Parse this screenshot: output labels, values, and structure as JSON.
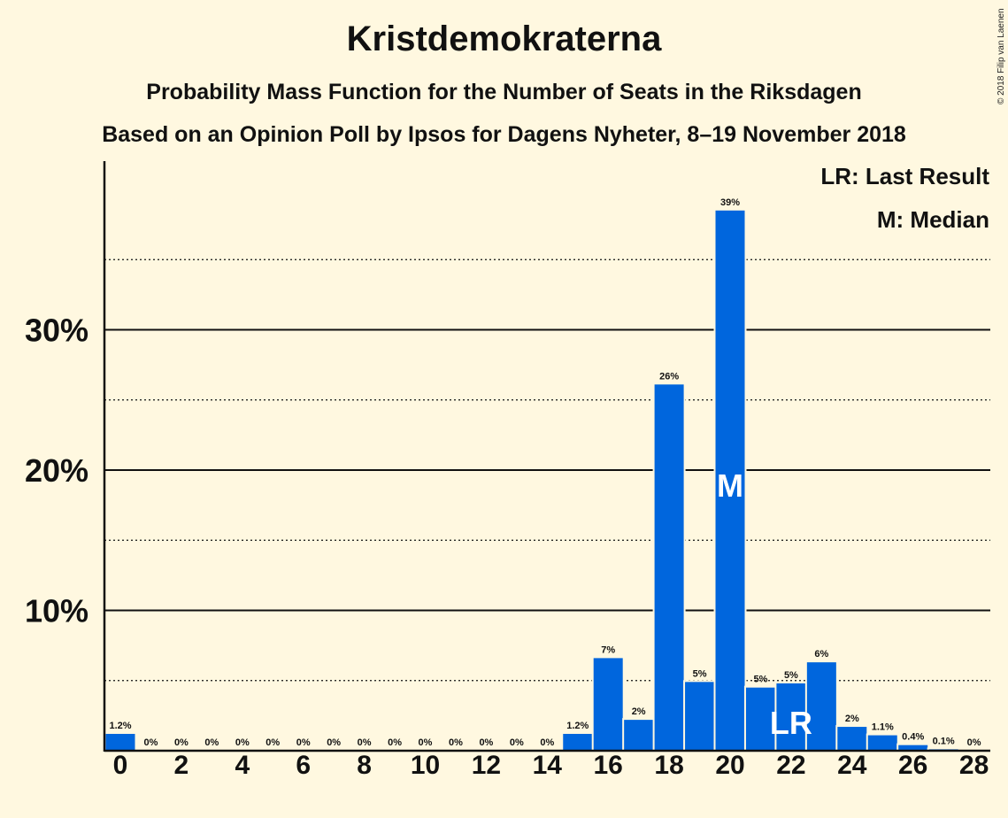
{
  "title": "Kristdemokraterna",
  "subtitle_1": "Probability Mass Function for the Number of Seats in the Riksdagen",
  "subtitle_2": "Based on an Opinion Poll by Ipsos for Dagens Nyheter, 8–19 November 2018",
  "copyright": "© 2018 Filip van Laenen",
  "legend": {
    "last_result": "LR: Last Result",
    "median": "M: Median"
  },
  "colors": {
    "background": "#fff8e0",
    "bar": "#0066dd",
    "marker_text": "#ffffff"
  },
  "chart_data": {
    "type": "bar",
    "categories": [
      0,
      1,
      2,
      3,
      4,
      5,
      6,
      7,
      8,
      9,
      10,
      11,
      12,
      13,
      14,
      15,
      16,
      17,
      18,
      19,
      20,
      21,
      22,
      23,
      24,
      25,
      26,
      27,
      28
    ],
    "values": [
      1.2,
      0,
      0,
      0,
      0,
      0,
      0,
      0,
      0,
      0,
      0,
      0,
      0,
      0,
      0,
      1.2,
      6.6,
      2.2,
      26.1,
      4.9,
      38.5,
      4.5,
      4.8,
      6.3,
      1.7,
      1.1,
      0.4,
      0.1,
      0
    ],
    "data_labels": [
      "1.2%",
      "0%",
      "0%",
      "0%",
      "0%",
      "0%",
      "0%",
      "0%",
      "0%",
      "0%",
      "0%",
      "0%",
      "0%",
      "0%",
      "0%",
      "1.2%",
      "7%",
      "2%",
      "26%",
      "5%",
      "39%",
      "5%",
      "5%",
      "6%",
      "2%",
      "1.1%",
      "0.4%",
      "0.1%",
      "0%"
    ],
    "x_tick_labels": [
      "0",
      "2",
      "4",
      "6",
      "8",
      "10",
      "12",
      "14",
      "16",
      "18",
      "20",
      "22",
      "24",
      "26",
      "28"
    ],
    "y_tick_labels": [
      "10%",
      "20%",
      "30%"
    ],
    "y_ticks": [
      10,
      20,
      30
    ],
    "y_minor_ticks": [
      5,
      15,
      25,
      35
    ],
    "ylim": [
      0,
      42
    ],
    "median": 20,
    "median_label": "M",
    "last_result": 22,
    "last_result_label": "LR",
    "grid": true,
    "legend_position": "top-right"
  }
}
